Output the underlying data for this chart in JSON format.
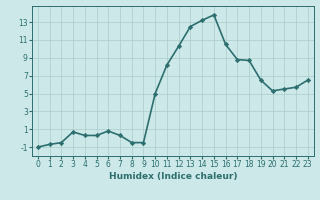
{
  "x": [
    0,
    1,
    2,
    3,
    4,
    5,
    6,
    7,
    8,
    9,
    10,
    11,
    12,
    13,
    14,
    15,
    16,
    17,
    18,
    19,
    20,
    21,
    22,
    23
  ],
  "y": [
    -1,
    -0.7,
    -0.5,
    0.7,
    0.3,
    0.3,
    0.8,
    0.3,
    -0.5,
    -0.5,
    5.0,
    8.2,
    10.3,
    12.5,
    13.2,
    13.8,
    10.5,
    8.8,
    8.7,
    6.5,
    5.3,
    5.5,
    5.7,
    6.5
  ],
  "line_color": "#2d6e6e",
  "marker": "D",
  "marker_size": 2.2,
  "bg_color": "#cce8e8",
  "grid_color": "#aacccc",
  "xlabel": "Humidex (Indice chaleur)",
  "xlim": [
    -0.5,
    23.5
  ],
  "ylim": [
    -2,
    14.8
  ],
  "yticks": [
    -1,
    1,
    3,
    5,
    7,
    9,
    11,
    13
  ],
  "xticks": [
    0,
    1,
    2,
    3,
    4,
    5,
    6,
    7,
    8,
    9,
    10,
    11,
    12,
    13,
    14,
    15,
    16,
    17,
    18,
    19,
    20,
    21,
    22,
    23
  ],
  "font_color": "#2d6e6e",
  "linewidth": 1.2,
  "tick_fontsize": 5.5,
  "xlabel_fontsize": 6.5
}
